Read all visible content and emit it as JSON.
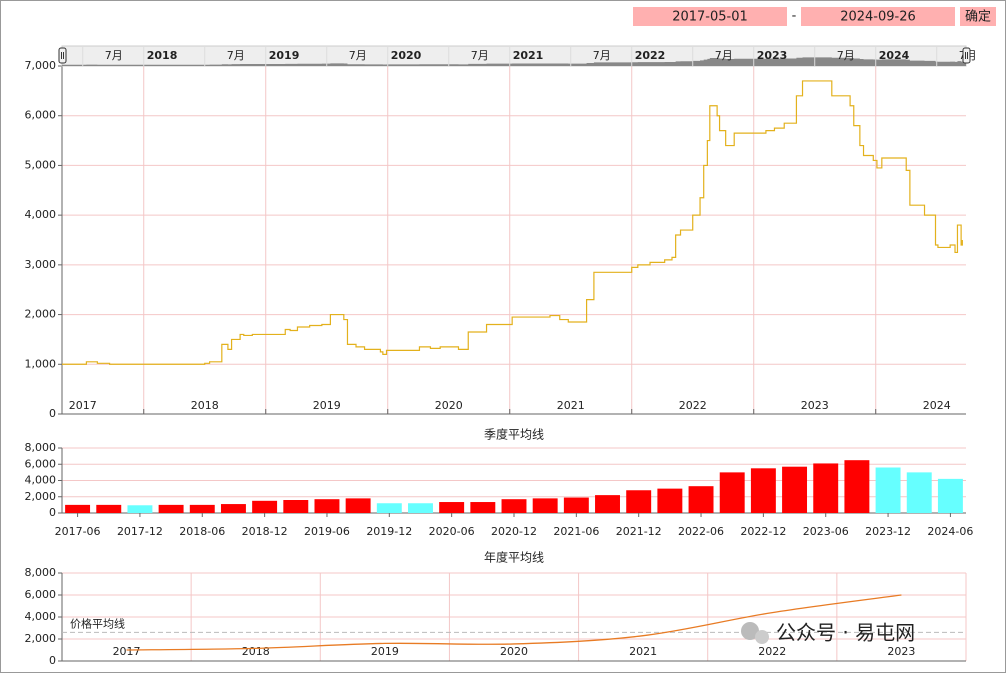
{
  "controls": {
    "start_date": "2017-05-01",
    "separator": "-",
    "end_date": "2024-09-26",
    "confirm": "确定"
  },
  "watermark": "公众号 · 易屯网",
  "chart_data": [
    {
      "type": "line",
      "step": true,
      "color": "#e3b11c",
      "x": [
        2017.33,
        2017.53,
        2017.62,
        2017.72,
        2018.5,
        2018.54,
        2018.64,
        2018.69,
        2018.72,
        2018.79,
        2018.82,
        2018.89,
        2018.92,
        2019.16,
        2019.2,
        2019.26,
        2019.36,
        2019.46,
        2019.53,
        2019.64,
        2019.67,
        2019.74,
        2019.81,
        2019.94,
        2019.96,
        2019.99,
        2020.26,
        2020.35,
        2020.43,
        2020.58,
        2020.66,
        2020.81,
        2021.02,
        2021.33,
        2021.41,
        2021.48,
        2021.63,
        2021.69,
        2022.0,
        2022.05,
        2022.15,
        2022.27,
        2022.33,
        2022.36,
        2022.4,
        2022.5,
        2022.56,
        2022.59,
        2022.62,
        2022.64,
        2022.7,
        2022.72,
        2022.77,
        2022.84,
        2023.1,
        2023.17,
        2023.25,
        2023.35,
        2023.4,
        2023.64,
        2023.79,
        2023.82,
        2023.87,
        2023.9,
        2023.98,
        2024.01,
        2024.05,
        2024.22,
        2024.25,
        2024.28,
        2024.4,
        2024.49,
        2024.51,
        2024.61,
        2024.65,
        2024.67,
        2024.7,
        2024.71
      ],
      "values": [
        1000,
        1050,
        1020,
        1000,
        1020,
        1050,
        1400,
        1300,
        1500,
        1600,
        1580,
        1600,
        1600,
        1700,
        1680,
        1750,
        1780,
        1800,
        2000,
        1900,
        1400,
        1350,
        1300,
        1250,
        1200,
        1280,
        1350,
        1320,
        1350,
        1300,
        1650,
        1800,
        1950,
        1980,
        1900,
        1850,
        2300,
        2850,
        2950,
        3000,
        3050,
        3100,
        3150,
        3600,
        3700,
        4000,
        4350,
        5000,
        5500,
        6200,
        6000,
        5700,
        5400,
        5650,
        5700,
        5750,
        5850,
        6400,
        6700,
        6400,
        6200,
        5800,
        5400,
        5200,
        5100,
        4950,
        5150,
        5150,
        4900,
        4200,
        4000,
        3400,
        3350,
        3400,
        3250,
        3800,
        3400,
        3500
      ],
      "xlim": [
        2017.33,
        2024.74
      ],
      "xticks": [
        {
          "value": 2017.5,
          "label": "2017"
        },
        {
          "value": 2018.5,
          "label": "2018"
        },
        {
          "value": 2019.5,
          "label": "2019"
        },
        {
          "value": 2020.5,
          "label": "2020"
        },
        {
          "value": 2021.5,
          "label": "2021"
        },
        {
          "value": 2022.5,
          "label": "2022"
        },
        {
          "value": 2023.5,
          "label": "2023"
        },
        {
          "value": 2024.5,
          "label": "2024"
        }
      ],
      "xgrid": [
        2018,
        2019,
        2020,
        2021,
        2022,
        2023,
        2024
      ],
      "ylim": [
        0,
        7000
      ],
      "yticks": [
        0,
        {
          "value": 1000,
          "label": "1,000"
        },
        {
          "value": 2000,
          "label": "2,000"
        },
        {
          "value": 3000,
          "label": "3,000"
        },
        {
          "value": 4000,
          "label": "4,000"
        },
        {
          "value": 5000,
          "label": "5,000"
        },
        {
          "value": 6000,
          "label": "6,000"
        },
        {
          "value": 7000,
          "label": "7,000"
        }
      ],
      "grid": true,
      "navigator_ticks": [
        {
          "value": 2017.5,
          "label": "7月"
        },
        {
          "value": 2018,
          "label": "2018"
        },
        {
          "value": 2018.5,
          "label": "7月"
        },
        {
          "value": 2019,
          "label": "2019"
        },
        {
          "value": 2019.5,
          "label": "7月"
        },
        {
          "value": 2020,
          "label": "2020"
        },
        {
          "value": 2020.5,
          "label": "7月"
        },
        {
          "value": 2021,
          "label": "2021"
        },
        {
          "value": 2021.5,
          "label": "7月"
        },
        {
          "value": 2022,
          "label": "2022"
        },
        {
          "value": 2022.5,
          "label": "7月"
        },
        {
          "value": 2023,
          "label": "2023"
        },
        {
          "value": 2023.5,
          "label": "7月"
        },
        {
          "value": 2024,
          "label": "2024"
        },
        {
          "value": 2024.5,
          "label": "7月"
        }
      ]
    },
    {
      "type": "bar",
      "title": "季度平均线",
      "categories": [
        "2017-06",
        null,
        "2017-12",
        null,
        "2018-06",
        null,
        "2018-12",
        null,
        "2019-06",
        null,
        "2019-12",
        null,
        "2020-06",
        null,
        "2020-12",
        null,
        "2021-06",
        null,
        "2021-12",
        null,
        "2022-06",
        null,
        "2022-12",
        null,
        "2023-06",
        null,
        "2023-12",
        null,
        "2024-06"
      ],
      "values": [
        1000,
        1000,
        950,
        1000,
        1000,
        1100,
        1500,
        1600,
        1700,
        1800,
        1200,
        1200,
        1350,
        1350,
        1700,
        1800,
        1900,
        2200,
        2800,
        3000,
        3300,
        5000,
        5500,
        5700,
        6100,
        6500,
        5600,
        5000,
        4200
      ],
      "colors": [
        "#ff0000",
        "#ff0000",
        "#66ffff",
        "#ff0000",
        "#ff0000",
        "#ff0000",
        "#ff0000",
        "#ff0000",
        "#ff0000",
        "#ff0000",
        "#66ffff",
        "#66ffff",
        "#ff0000",
        "#ff0000",
        "#ff0000",
        "#ff0000",
        "#ff0000",
        "#ff0000",
        "#ff0000",
        "#ff0000",
        "#ff0000",
        "#ff0000",
        "#ff0000",
        "#ff0000",
        "#ff0000",
        "#ff0000",
        "#66ffff",
        "#66ffff",
        "#66ffff"
      ],
      "ylim": [
        0,
        8000
      ],
      "yticks": [
        0,
        {
          "value": 2000,
          "label": "2,000"
        },
        {
          "value": 4000,
          "label": "4,000"
        },
        {
          "value": 6000,
          "label": "6,000"
        },
        {
          "value": 8000,
          "label": "8,000"
        }
      ],
      "grid": true
    },
    {
      "type": "line",
      "smooth": true,
      "title": "年度平均线",
      "color": "#e87b24",
      "categories": [
        "2017",
        "2018",
        "2019",
        "2020",
        "2021",
        "2022",
        "2023"
      ],
      "values": [
        1000,
        1150,
        1600,
        1550,
        2300,
        4400,
        6000
      ],
      "ylim": [
        0,
        8000
      ],
      "yticks": [
        0,
        {
          "value": 2000,
          "label": "2,000"
        },
        {
          "value": 4000,
          "label": "4,000"
        },
        {
          "value": 6000,
          "label": "6,000"
        },
        {
          "value": 8000,
          "label": "8,000"
        }
      ],
      "grid": true,
      "reference_line": {
        "label": "价格平均线",
        "value": 2600
      }
    }
  ]
}
